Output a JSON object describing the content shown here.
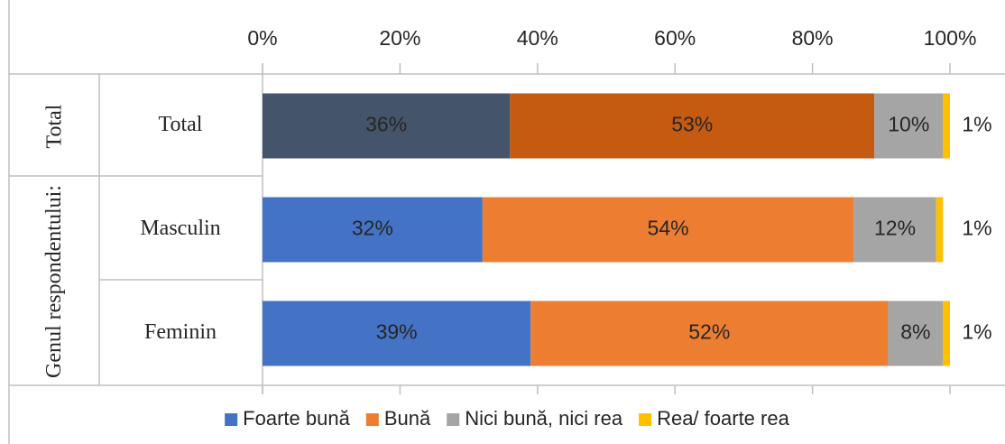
{
  "chart_data": {
    "type": "stacked-bar-horizontal",
    "categories": [
      "Total",
      "Masculin",
      "Feminin"
    ],
    "category_groups": [
      {
        "label": "Total",
        "categories": [
          0
        ]
      },
      {
        "label": "Genul respondentului:",
        "categories": [
          1,
          2
        ]
      }
    ],
    "series": [
      {
        "name": "Foarte bună",
        "color": "#4472c4",
        "colors": [
          "#44546a",
          "#4472c4",
          "#4472c4"
        ],
        "values": [
          36,
          32,
          39
        ],
        "value_labels": [
          "36%",
          "32%",
          "39%"
        ]
      },
      {
        "name": "Bună",
        "color": "#ed7d31",
        "colors": [
          "#c55a11",
          "#ed7d31",
          "#ed7d31"
        ],
        "values": [
          53,
          54,
          52
        ],
        "value_labels": [
          "53%",
          "54%",
          "52%"
        ]
      },
      {
        "name": "Nici bună, nici rea",
        "color": "#a5a5a5",
        "colors": [
          "#a5a5a5",
          "#a5a5a5",
          "#a5a5a5"
        ],
        "values": [
          10,
          12,
          8
        ],
        "value_labels": [
          "10%",
          "12%",
          "8%"
        ]
      },
      {
        "name": "Rea/ foarte rea",
        "color": "#ffc000",
        "colors": [
          "#ffc000",
          "#ffc000",
          "#ffc000"
        ],
        "values": [
          1,
          1,
          1
        ],
        "value_labels": [
          "1%",
          "1%",
          "1%"
        ]
      }
    ],
    "xlim": [
      0,
      100
    ],
    "xticks": [
      {
        "value": 0,
        "label": "0%"
      },
      {
        "value": 20,
        "label": "20%"
      },
      {
        "value": 40,
        "label": "40%"
      },
      {
        "value": 60,
        "label": "60%"
      },
      {
        "value": 80,
        "label": "80%"
      },
      {
        "value": 100,
        "label": "100%"
      }
    ],
    "legend": "bottom"
  }
}
